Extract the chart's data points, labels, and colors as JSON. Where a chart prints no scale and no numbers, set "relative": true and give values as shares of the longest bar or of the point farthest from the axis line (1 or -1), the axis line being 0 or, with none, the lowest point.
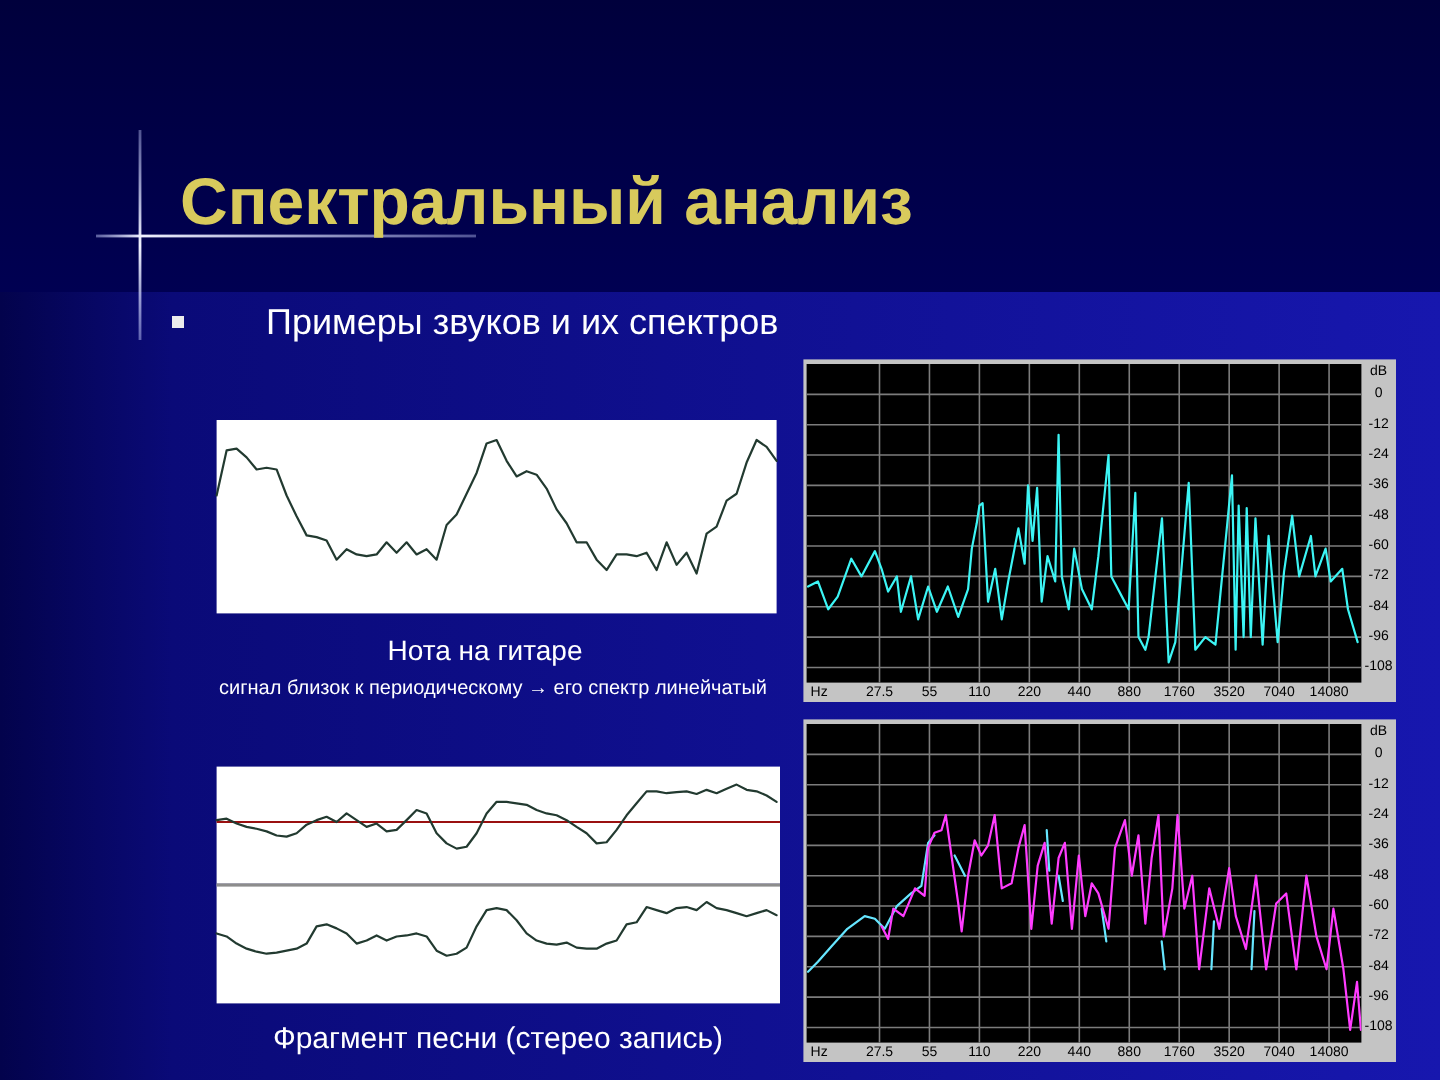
{
  "chart_data": [
    {
      "type": "line",
      "title": "Спектральный анализ",
      "subtitle": "Примеры звуков и их спектров",
      "relative": true,
      "categories": [
        null,
        null,
        null,
        null,
        null,
        null,
        null,
        null,
        null,
        null,
        null,
        null,
        null,
        null,
        null,
        null,
        null,
        null,
        null,
        null,
        null,
        null,
        null,
        null,
        null,
        null,
        null,
        null,
        null,
        null,
        null,
        null,
        null,
        null,
        null,
        null,
        null,
        null,
        null,
        null,
        null,
        null,
        null,
        null,
        null,
        null,
        null,
        null,
        null,
        null,
        null,
        null,
        null,
        null,
        null,
        null,
        null
      ],
      "series": [
        {
          "color": "#223a30",
          "values": [
            0.68,
            0.94,
            0.95,
            0.9,
            0.83,
            0.84,
            0.83,
            0.68,
            0.56,
            0.45,
            0.44,
            0.42,
            0.31,
            0.37,
            0.34,
            0.33,
            0.34,
            0.41,
            0.35,
            0.41,
            0.34,
            0.37,
            0.31,
            0.51,
            0.57,
            0.69,
            0.81,
            0.98,
            1,
            0.88,
            0.79,
            0.82,
            0.8,
            0.72,
            0.6,
            0.52,
            0.41,
            0.41,
            0.31,
            0.25,
            0.34,
            0.34,
            0.33,
            0.35,
            0.25,
            0.41,
            0.28,
            0.35,
            0.23,
            0.46,
            0.5,
            0.65,
            0.69,
            0.87,
            1,
            0.96,
            0.88
          ]
        }
      ],
      "annotations": [
        "Нота на гитаре",
        "сигнал близок к периодическому → его спектр линейчатый"
      ]
    },
    {
      "type": "line",
      "xlabel": "Hz",
      "ylabel": "dB",
      "log": "x",
      "grid": true,
      "xlim": [
        10,
        22050
      ],
      "ylim": [
        -114,
        12
      ],
      "xticks": [
        27.5,
        55,
        110,
        220,
        440,
        880,
        1760,
        3520,
        7040,
        14080
      ],
      "yticks": [
        0,
        -12,
        -24,
        -36,
        -48,
        -60,
        -72,
        -84,
        -96,
        -108
      ],
      "series": [
        {
          "color": "#3cf5f5",
          "x": [
            10.2,
            11.7,
            13.5,
            15.4,
            18.6,
            21.4,
            25.8,
            28.3,
            31,
            35,
            37,
            42.6,
            47,
            54,
            61,
            71,
            82,
            94,
            99,
            106,
            110,
            115,
            124,
            137,
            150,
            164,
            189,
            206,
            216,
            230,
            245,
            261,
            283,
            315,
            330,
            345,
            380,
            410,
            456,
            523,
            573,
            660,
            686,
            795,
            872,
            957,
            1000,
            1100,
            1150,
            1386,
            1520,
            1667,
            2008,
            2200,
            2530,
            2910,
            3660,
            3850,
            4015,
            4300,
            4490,
            4750,
            5070,
            5600,
            6080,
            6900,
            7540,
            8440,
            9300,
            10940,
            11650,
            13420,
            14400,
            16910,
            18300,
            20930
          ],
          "values": [
            -76,
            -74,
            -85,
            -80,
            -65,
            -72,
            -62,
            -69,
            -78,
            -72,
            -86,
            -72,
            -89,
            -76,
            -86,
            -76,
            -88,
            -77,
            -61,
            -51,
            -44,
            -43,
            -82,
            -69,
            -89,
            -74,
            -53,
            -67,
            -36,
            -58,
            -37,
            -82,
            -64,
            -74,
            -16,
            -72,
            -85,
            -61,
            -77,
            -85,
            -64,
            -24,
            -72,
            -80,
            -85,
            -39,
            -96,
            -101,
            -96,
            -49,
            -106,
            -98,
            -35,
            -101,
            -96,
            -99,
            -32,
            -101,
            -44,
            -96,
            -45,
            -96,
            -49,
            -99,
            -56,
            -98,
            -70,
            -48,
            -72,
            -56,
            -72,
            -61,
            -74,
            -69,
            -85,
            -98
          ]
        }
      ]
    },
    {
      "type": "line",
      "relative": true,
      "categories": [
        null,
        null,
        null,
        null,
        null,
        null,
        null,
        null,
        null,
        null,
        null,
        null,
        null,
        null,
        null,
        null,
        null,
        null,
        null,
        null,
        null,
        null,
        null,
        null,
        null,
        null,
        null,
        null,
        null,
        null,
        null,
        null,
        null,
        null,
        null,
        null,
        null,
        null,
        null,
        null,
        null,
        null,
        null,
        null,
        null,
        null,
        null,
        null,
        null,
        null,
        null,
        null,
        null,
        null,
        null,
        null,
        null
      ],
      "ref_lines": [
        {
          "axis": "y",
          "value": 0,
          "color": "#9a1010"
        }
      ],
      "series": [
        {
          "color": "#223a30",
          "values": [
            0.05,
            0.09,
            -0.04,
            -0.13,
            -0.18,
            -0.25,
            -0.36,
            -0.39,
            -0.3,
            -0.07,
            0.05,
            0.14,
            0,
            0.23,
            0.05,
            -0.13,
            -0.04,
            -0.25,
            -0.21,
            0.05,
            0.32,
            0.23,
            -0.3,
            -0.57,
            -0.71,
            -0.66,
            -0.3,
            0.23,
            0.54,
            0.54,
            0.5,
            0.46,
            0.32,
            0.23,
            0.18,
            0.05,
            -0.13,
            -0.3,
            -0.57,
            -0.54,
            -0.21,
            0.18,
            0.5,
            0.82,
            0.82,
            0.77,
            0.8,
            0.82,
            0.75,
            0.86,
            0.77,
            0.89,
            1,
            0.86,
            0.82,
            0.71,
            0.54
          ]
        }
      ]
    },
    {
      "type": "line",
      "relative": true,
      "categories": [
        null,
        null,
        null,
        null,
        null,
        null,
        null,
        null,
        null,
        null,
        null,
        null,
        null,
        null,
        null,
        null,
        null,
        null,
        null,
        null,
        null,
        null,
        null,
        null,
        null,
        null,
        null,
        null,
        null,
        null,
        null,
        null,
        null,
        null,
        null,
        null,
        null,
        null,
        null,
        null,
        null,
        null,
        null,
        null,
        null,
        null,
        null,
        null,
        null,
        null,
        null,
        null,
        null,
        null,
        null,
        null,
        null
      ],
      "series": [
        {
          "color": "#223a30",
          "values": [
            0.69,
            0.66,
            0.59,
            0.54,
            0.51,
            0.49,
            0.5,
            0.52,
            0.54,
            0.59,
            0.76,
            0.78,
            0.74,
            0.69,
            0.59,
            0.62,
            0.67,
            0.62,
            0.66,
            0.67,
            0.69,
            0.66,
            0.52,
            0.47,
            0.49,
            0.55,
            0.76,
            0.92,
            0.94,
            0.92,
            0.82,
            0.69,
            0.62,
            0.59,
            0.58,
            0.6,
            0.55,
            0.54,
            0.54,
            0.59,
            0.62,
            0.78,
            0.8,
            0.95,
            0.92,
            0.89,
            0.94,
            0.95,
            0.92,
            1,
            0.94,
            0.92,
            0.89,
            0.86,
            0.89,
            0.92,
            0.87
          ]
        }
      ],
      "annotations": [
        "Фрагмент песни (стерео запись)"
      ]
    },
    {
      "type": "line",
      "xlabel": "Hz",
      "ylabel": "dB",
      "log": "x",
      "grid": true,
      "xlim": [
        10,
        22050
      ],
      "ylim": [
        -114,
        12
      ],
      "xticks": [
        27.5,
        55,
        110,
        220,
        440,
        880,
        1760,
        3520,
        7040,
        14080
      ],
      "yticks": [
        0,
        -12,
        -24,
        -36,
        -48,
        -60,
        -72,
        -84,
        -96,
        -108
      ],
      "series": [
        {
          "color": "#66e6ff",
          "x": [
            10.2,
            11.7,
            14.1,
            17.6,
            22.4,
            25.8,
            29.6,
            35,
            42.6,
            49.2,
            54,
            59,
            62,
            78,
            90,
            100,
            280,
            290,
            300,
            330,
            350,
            370,
            600,
            640,
            680,
            1380,
            1440,
            1500,
            2750,
            2850,
            3000,
            4800,
            5000
          ],
          "values": [
            -86,
            -82,
            -76,
            -69,
            -64,
            -65,
            -69,
            -60,
            -55,
            -52,
            -35,
            -32,
            null,
            -40,
            -48,
            null,
            -30,
            -46,
            null,
            -48,
            -58,
            null,
            -61,
            -74,
            null,
            -74,
            -85,
            null,
            -85,
            -66,
            null,
            -85,
            -62
          ]
        },
        {
          "color": "#ff3cff",
          "x": [
            28.3,
            31,
            33.3,
            38.3,
            45,
            51.4,
            53.9,
            59,
            65,
            69,
            75,
            82,
            86,
            94,
            103,
            113,
            124,
            136,
            150,
            172,
            189,
            206,
            226,
            247,
            272,
            300,
            330,
            360,
            397,
            437,
            478,
            523,
            573,
            660,
            722,
            829,
            911,
            1000,
            1100,
            1200,
            1320,
            1420,
            1600,
            1720,
            1890,
            2110,
            2320,
            2670,
            3070,
            3520,
            3860,
            4440,
            5110,
            5880,
            6760,
            7770,
            8940,
            10280,
            11820,
            13590,
            14950,
            17180,
            18870,
            20750,
            21900
          ],
          "values": [
            -68,
            -73,
            -61,
            -64,
            -53,
            -56,
            -37,
            -31,
            -30,
            -24,
            -41,
            -59,
            -70,
            -48,
            -34,
            -40,
            -36,
            -24,
            -53,
            -51,
            -37,
            -28,
            -69,
            -44,
            -35,
            -67,
            -41,
            -35,
            -69,
            -40,
            -64,
            -51,
            -55,
            -69,
            -37,
            -26,
            -48,
            -32,
            -67,
            -41,
            -24,
            -72,
            -53,
            -24,
            -61,
            -48,
            -85,
            -53,
            -69,
            -45,
            -64,
            -77,
            -48,
            -85,
            -59,
            -55,
            -85,
            -48,
            -72,
            -85,
            -61,
            -85,
            -109,
            -90,
            -109
          ]
        }
      ]
    }
  ]
}
